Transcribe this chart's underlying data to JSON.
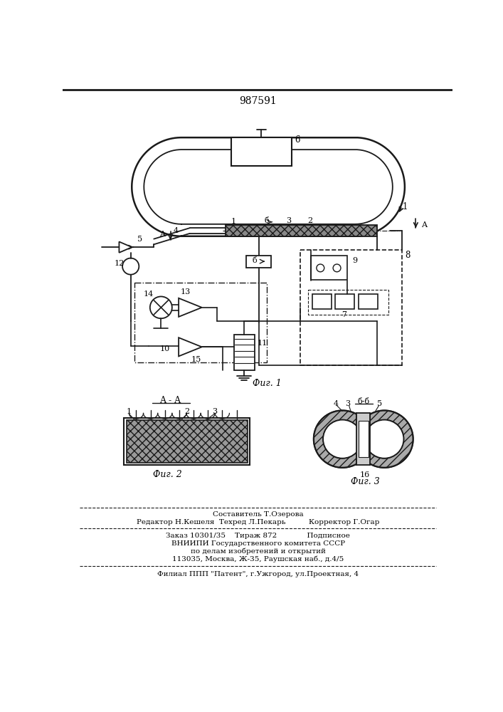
{
  "patent_number": "987591",
  "background_color": "#ffffff",
  "line_color": "#1a1a1a",
  "fig_width": 7.07,
  "fig_height": 10.0,
  "footer_lines": [
    "Составитель Т.Озерова",
    "Редактор Н.Кешеля  Техред Л.Пекарь          Корректор Г.Огар",
    "Заказ 10301/35    Тираж 872             Подписное",
    "ВНИИПИ Государственного комитета СССР",
    "по делам изобретений и открытий",
    "113035, Москва, Ж-35, Раушская наб., д.4/5",
    "Филиал ППП \"Патент\", г.Ужгород, ул.Проектная, 4"
  ]
}
